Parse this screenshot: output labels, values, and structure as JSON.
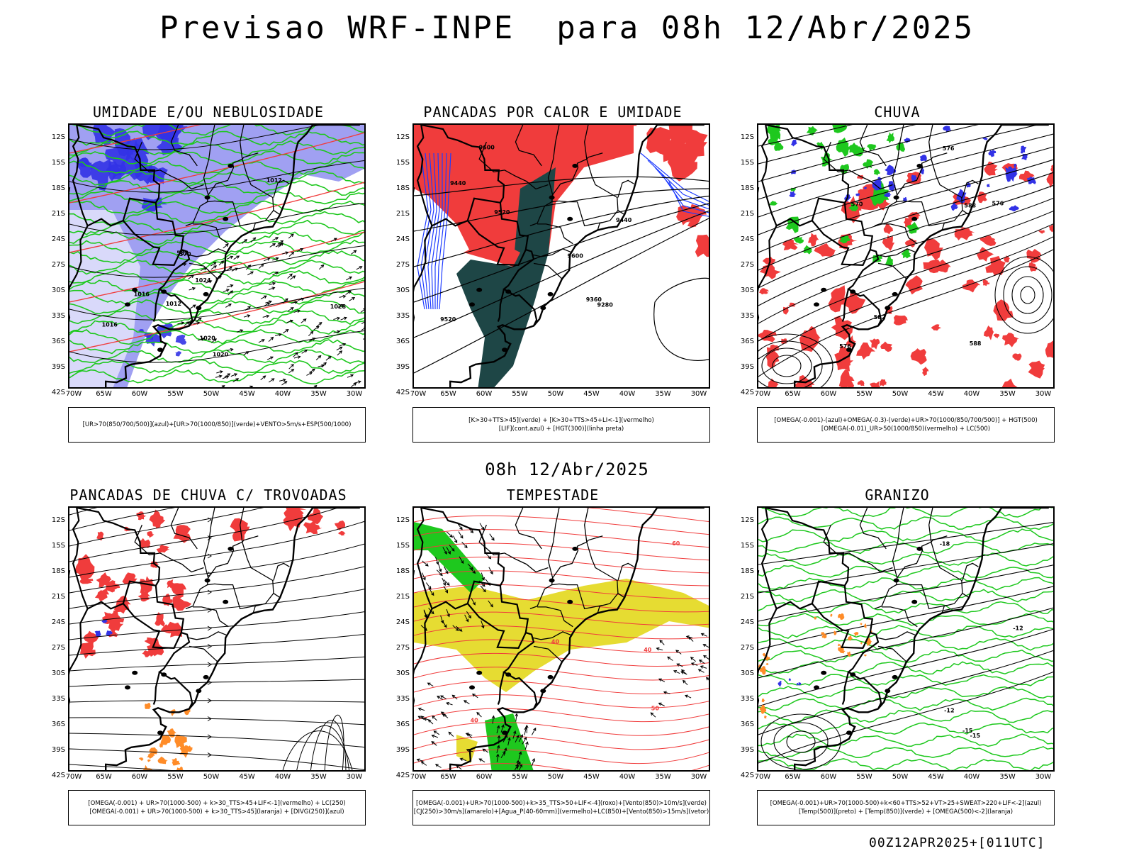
{
  "title": "Previsao WRF-INPE  para 08h 12/Abr/2025",
  "subtitle": "08h 12/Abr/2025",
  "footer": "00Z12APR2025+[011UTC]",
  "lat_labels": [
    "12S",
    "15S",
    "18S",
    "21S",
    "24S",
    "27S",
    "30S",
    "33S",
    "36S",
    "39S",
    "42S"
  ],
  "lon_labels": [
    "70W",
    "65W",
    "60W",
    "55W",
    "50W",
    "45W",
    "40W",
    "35W",
    "30W"
  ],
  "colors": {
    "blue_fill": "#8f8ff0",
    "dark_blue": "#3232e6",
    "green": "#1ec81e",
    "red": "#f03c3c",
    "dark_teal": "#1e4646",
    "yellow": "#e6dc32",
    "orange": "#ff8c28",
    "blue_line": "#1e3cff",
    "black": "#000000"
  },
  "panels": [
    {
      "title": "UMIDADE E/OU NEBULOSIDADE",
      "style": "umidade",
      "legend": [
        "[UR>70(850/700/500)](azul)+[UR>70(1000/850)](verde)+VENTO>5m/s+ESP(500/1000)"
      ],
      "labels": [
        "1012",
        "1012",
        "1016",
        "1016",
        "1020",
        "1020",
        "1024",
        "1028",
        "570",
        "582"
      ]
    },
    {
      "title": "PANCADAS POR CALOR E UMIDADE",
      "style": "calor",
      "legend": [
        "[K>30+TTS>45](verde) + [K>30+TTS>45+LI<-1](vermelho)",
        "[LIF](cont.azul) + [HGT(300)](linha preta)"
      ],
      "labels": [
        "9600",
        "9600",
        "9520",
        "9440",
        "9360",
        "9280",
        "9520",
        "9440"
      ]
    },
    {
      "title": "CHUVA",
      "style": "chuva",
      "legend": [
        "[OMEGA(-0.001)-(azul)+OMEGA(-0.3)-(verde)+UR>70(1000/850/700/500)] + HGT(500)",
        "[OMEGA(-0.01)_UR>50(1000/850)(vermelho) + LC(500)"
      ],
      "labels": [
        "588",
        "588",
        "582",
        "576",
        "576",
        "576",
        "570"
      ]
    },
    {
      "title": "PANCADAS DE CHUVA C/ TROVOADAS",
      "style": "trovoadas",
      "legend": [
        "[OMEGA(-0.001) + UR>70(1000-500) + k>30_TTS>45+LIF<-1](vermelho) + LC(250)",
        "[OMEGA(-0.001) + UR>70(1000-500) + k>30_TTS>45](laranja) + [DIVG(250)](azul)"
      ],
      "labels": []
    },
    {
      "title": "TEMPESTADE",
      "style": "tempestade",
      "legend": [
        "[OMEGA(-0.001)+UR>70(1000-500)+k>35_TTS>50+LIF<-4](roxo)+[Vento(850)>10m/s](verde)",
        "[CJ(250)>30m/s](amarelo)+[Agua_P(40-60mm)](vermelho)+LC(850)+[Vento(850)>15m/s](vetor)"
      ],
      "labels": [
        "40",
        "40",
        "40",
        "50",
        "60"
      ]
    },
    {
      "title": "GRANIZO",
      "style": "granizo",
      "legend": [
        "[OMEGA(-0.001)+UR>70(1000-500)+k<60+TTS>52+VT>25+SWEAT>220+LIF<-2](azul)",
        "[Temp(500)](preto) + [Temp(850)](verde) + [OMEGA(500)<-2](laranja)"
      ],
      "labels": [
        "-12",
        "-12",
        "-15",
        "-15",
        "-18"
      ]
    }
  ]
}
